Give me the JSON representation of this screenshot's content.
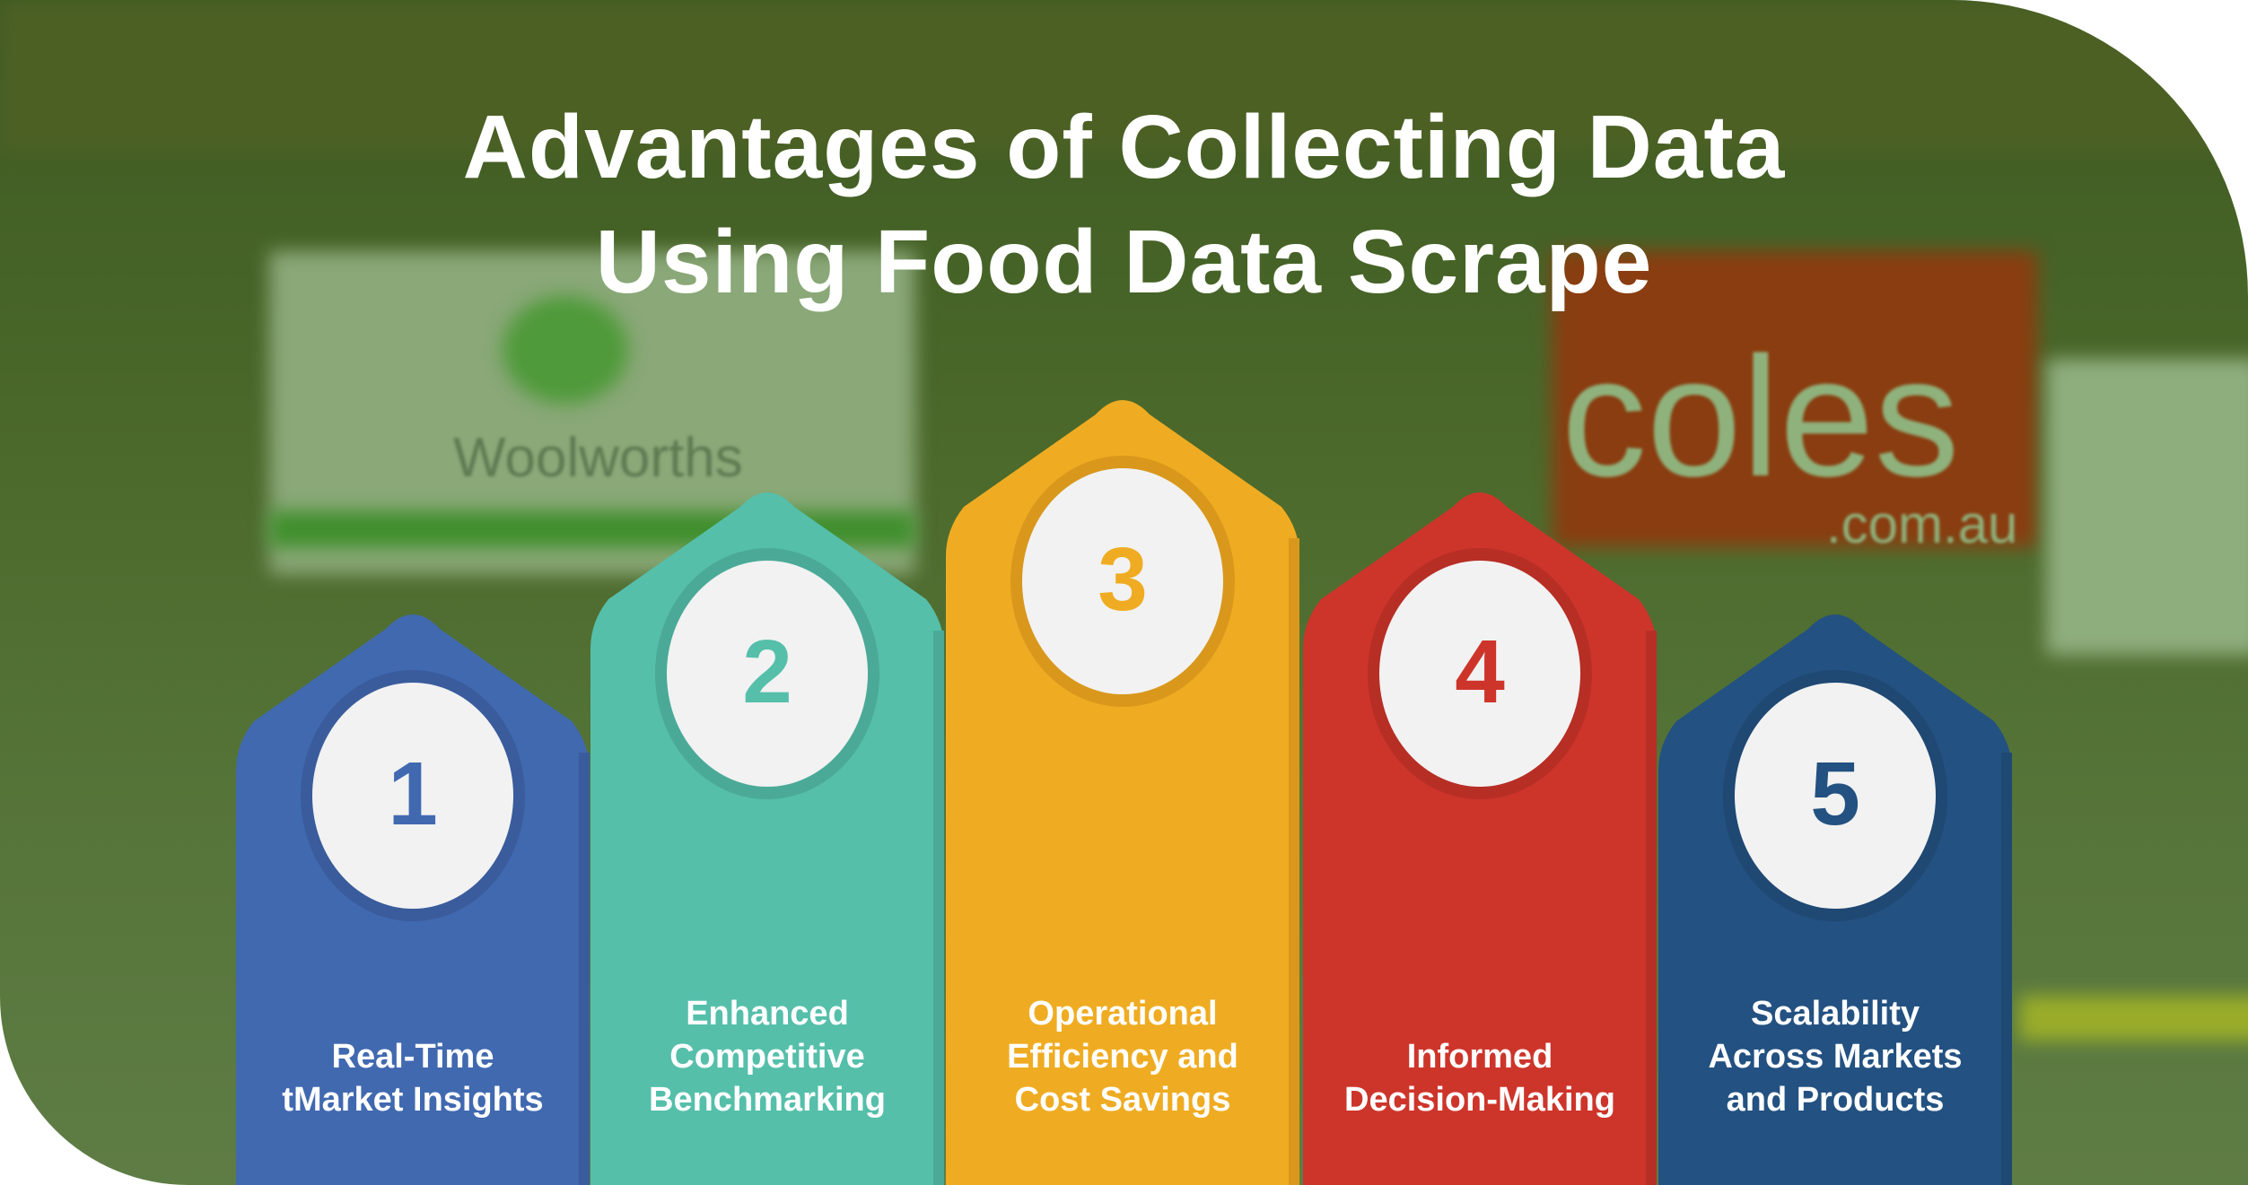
{
  "title": {
    "line1": "Advantages of Collecting Data",
    "line2": "Using Food Data Scrape"
  },
  "background": {
    "sign_brand_left": "Woolworths",
    "sign_brand_right": "coles",
    "sign_right_sub": ".com.au"
  },
  "circle_fill": "#F2F2F2",
  "cards": [
    {
      "number": "1",
      "lines": [
        "Real-Time",
        "tMarket Insights"
      ],
      "color": "#4169B0",
      "edge": "#3A5C9C"
    },
    {
      "number": "2",
      "lines": [
        "Enhanced",
        "Competitive",
        "Benchmarking"
      ],
      "color": "#55BFAA",
      "edge": "#4AAA97"
    },
    {
      "number": "3",
      "lines": [
        "Operational",
        "Efficiency and",
        "Cost Savings"
      ],
      "color": "#EFAC22",
      "edge": "#D9981C"
    },
    {
      "number": "4",
      "lines": [
        "Informed",
        "Decision-Making"
      ],
      "color": "#CD352B",
      "edge": "#B72E25"
    },
    {
      "number": "5",
      "lines": [
        "Scalability",
        "Across Markets",
        "and Products"
      ],
      "color": "#235181",
      "edge": "#1F4873"
    }
  ]
}
